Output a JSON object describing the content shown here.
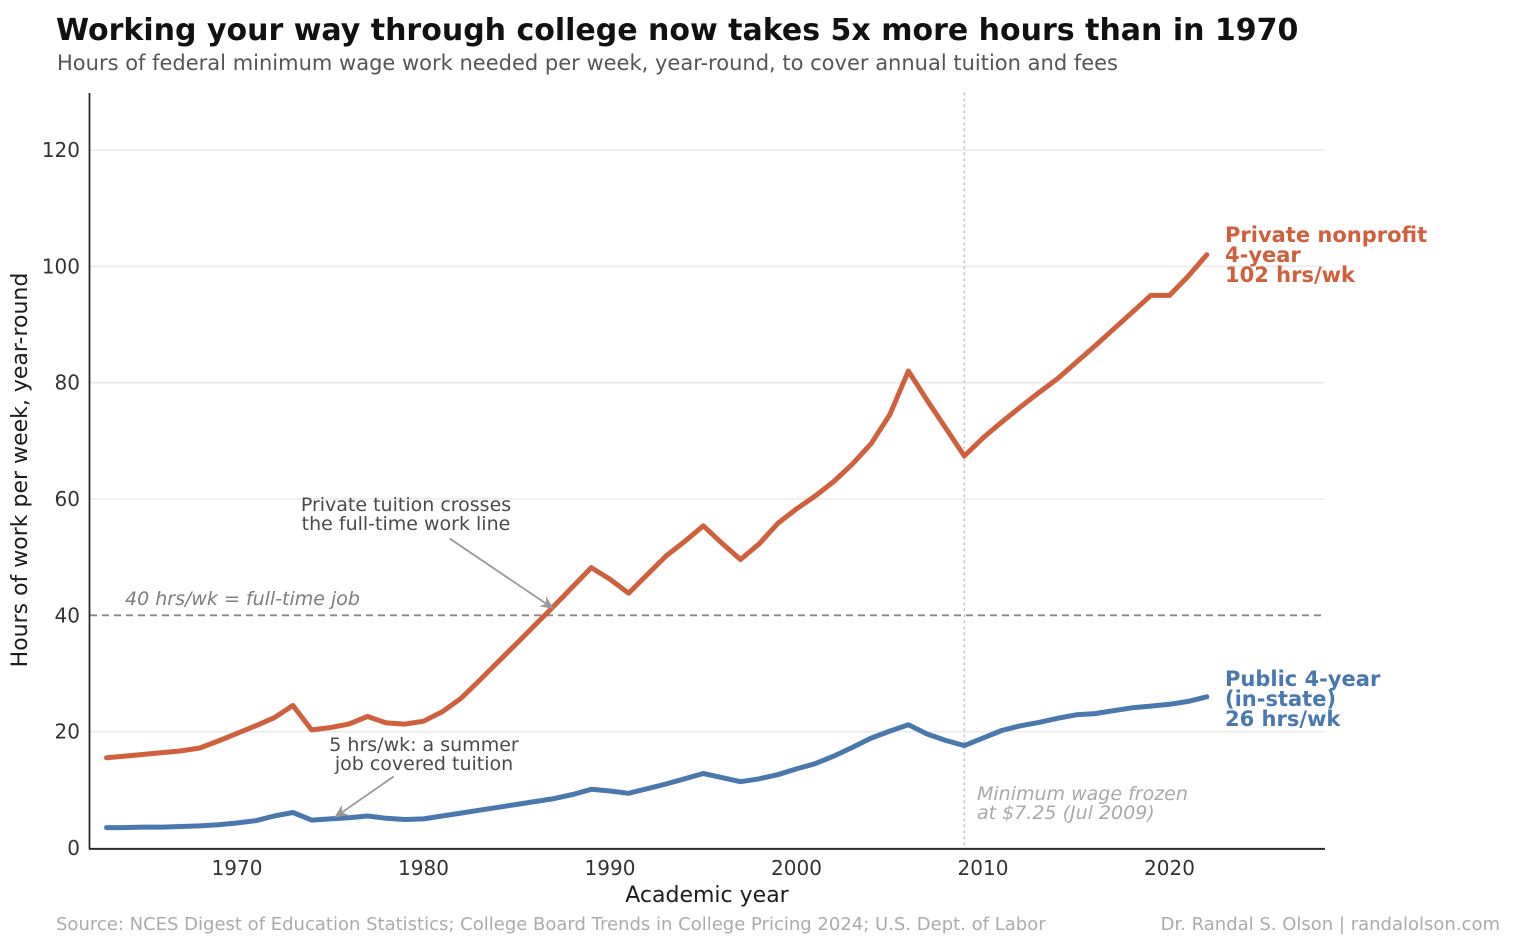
{
  "header": {
    "title": "Working your way through college now takes 5x more hours than in 1970",
    "subtitle": "Hours of federal minimum wage work needed per week, year-round, to cover annual tuition and fees"
  },
  "footer": {
    "source": "Source: NCES Digest of Education Statistics; College Board Trends in College Pricing 2024; U.S. Dept. of Labor",
    "credit": "Dr. Randal S. Olson  |  randalolson.com"
  },
  "colors": {
    "private": "#d0603c",
    "public": "#4878ad",
    "grid": "#ebebeb",
    "dashed_line": "#888888",
    "dotted_line": "#c4c4c4",
    "axis": "#2b2b2b",
    "arrow": "#999999"
  },
  "chart_data": {
    "type": "line",
    "title": "Working your way through college now takes 5x more hours than in 1970",
    "xlabel": "Academic year",
    "ylabel": "Hours of work per week, year-round",
    "x_ticks": [
      1970,
      1980,
      1990,
      2000,
      2010,
      2020
    ],
    "y_ticks": [
      0,
      20,
      40,
      60,
      80,
      100,
      120
    ],
    "xlim": [
      1962,
      2028.5
    ],
    "ylim": [
      0,
      130
    ],
    "grid": "horizontal",
    "legend_position": "end-of-line labels",
    "x": [
      1963,
      1964,
      1965,
      1966,
      1967,
      1968,
      1969,
      1970,
      1971,
      1972,
      1973,
      1974,
      1975,
      1976,
      1977,
      1978,
      1979,
      1980,
      1981,
      1982,
      1983,
      1984,
      1985,
      1986,
      1987,
      1988,
      1989,
      1990,
      1991,
      1992,
      1993,
      1994,
      1995,
      1996,
      1997,
      1998,
      1999,
      2000,
      2001,
      2002,
      2003,
      2004,
      2005,
      2006,
      2007,
      2008,
      2009,
      2010,
      2011,
      2012,
      2013,
      2014,
      2015,
      2016,
      2017,
      2018,
      2019,
      2020,
      2021,
      2022
    ],
    "series": [
      {
        "name": "Private nonprofit 4-year",
        "color": "#d0603c",
        "end_value": "102 hrs/wk",
        "label_lines": [
          "Private nonprofit",
          "4-year",
          "102 hrs/wk"
        ],
        "values": [
          15.5,
          15.8,
          16.1,
          16.4,
          16.7,
          17.2,
          18.4,
          19.7,
          21.0,
          22.4,
          24.5,
          20.3,
          20.7,
          21.3,
          22.6,
          21.5,
          21.3,
          21.8,
          23.4,
          25.7,
          28.8,
          32.0,
          35.2,
          38.4,
          41.6,
          44.9,
          48.2,
          46.2,
          43.8,
          47.0,
          50.2,
          52.7,
          55.4,
          52.4,
          49.6,
          52.3,
          55.8,
          58.3,
          60.5,
          63.0,
          66.0,
          69.5,
          74.5,
          82.0,
          77.0,
          72.2,
          67.4,
          70.5,
          73.2,
          75.8,
          78.3,
          80.7,
          83.5,
          86.3,
          89.2,
          92.1,
          95.0,
          95.0,
          98.3,
          102.0
        ]
      },
      {
        "name": "Public 4-year (in-state)",
        "color": "#4878ad",
        "end_value": "26 hrs/wk",
        "label_lines": [
          "Public 4-year",
          "(in-state)",
          "26 hrs/wk"
        ],
        "values": [
          3.5,
          3.5,
          3.6,
          3.6,
          3.7,
          3.8,
          4.0,
          4.3,
          4.7,
          5.5,
          6.1,
          4.8,
          5.0,
          5.2,
          5.5,
          5.1,
          4.9,
          5.0,
          5.5,
          6.0,
          6.5,
          7.0,
          7.5,
          8.0,
          8.5,
          9.2,
          10.1,
          9.8,
          9.4,
          10.2,
          11.0,
          11.9,
          12.8,
          12.1,
          11.4,
          11.9,
          12.6,
          13.6,
          14.5,
          15.8,
          17.3,
          18.9,
          20.1,
          21.2,
          19.6,
          18.5,
          17.6,
          18.9,
          20.2,
          21.0,
          21.6,
          22.3,
          22.9,
          23.1,
          23.6,
          24.1,
          24.4,
          24.7,
          25.2,
          26.0
        ]
      }
    ],
    "reference_lines": {
      "fulltime": {
        "y": 40,
        "style": "dashed",
        "label": "40 hrs/wk = full-time job"
      },
      "minwage": {
        "x": 2009,
        "style": "dotted",
        "label_lines": [
          "Minimum wage frozen",
          "at $7.25 (Jul 2009)"
        ]
      }
    },
    "annotations": {
      "cross": {
        "lines": [
          "Private tuition crosses",
          "the full-time work line"
        ],
        "arrow_from": {
          "year": 1981.4,
          "value": 53.2
        },
        "arrow_to": {
          "year": 1986.9,
          "value": 41.3
        }
      },
      "summer": {
        "lines": [
          "5 hrs/wk: a summer",
          "job covered tuition"
        ],
        "arrow_from": {
          "year": 1978.4,
          "value": 12.3
        },
        "arrow_to": {
          "year": 1975.3,
          "value": 5.4
        }
      }
    }
  }
}
